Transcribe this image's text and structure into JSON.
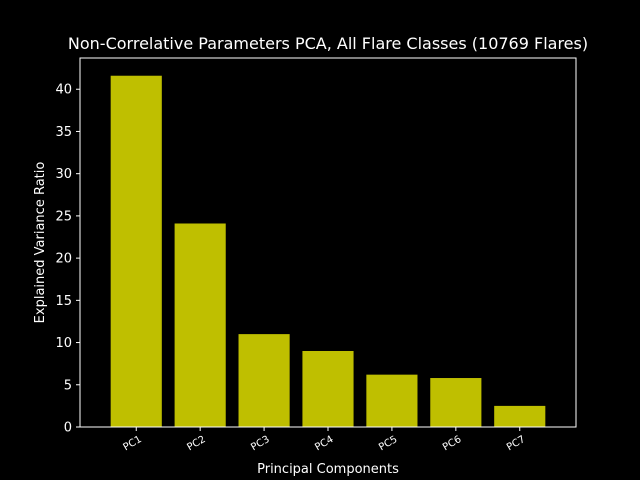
{
  "chart_data": {
    "type": "bar",
    "title": "Non-Correlative Parameters PCA, All Flare Classes (10769 Flares)",
    "xlabel": "Principal Components",
    "ylabel": "Explained Variance Ratio",
    "categories": [
      "PC1",
      "PC2",
      "PC3",
      "PC4",
      "PC5",
      "PC6",
      "PC7"
    ],
    "values": [
      41.6,
      24.1,
      11.0,
      9.0,
      6.2,
      5.8,
      2.5
    ],
    "ylim": [
      0,
      43.7
    ],
    "yticks": [
      "0",
      "5",
      "10",
      "15",
      "20",
      "25",
      "30",
      "35",
      "40"
    ],
    "bar_color": "#bfbf00",
    "background_color": "#000000",
    "foreground_color": "#ffffff",
    "grid": false
  }
}
